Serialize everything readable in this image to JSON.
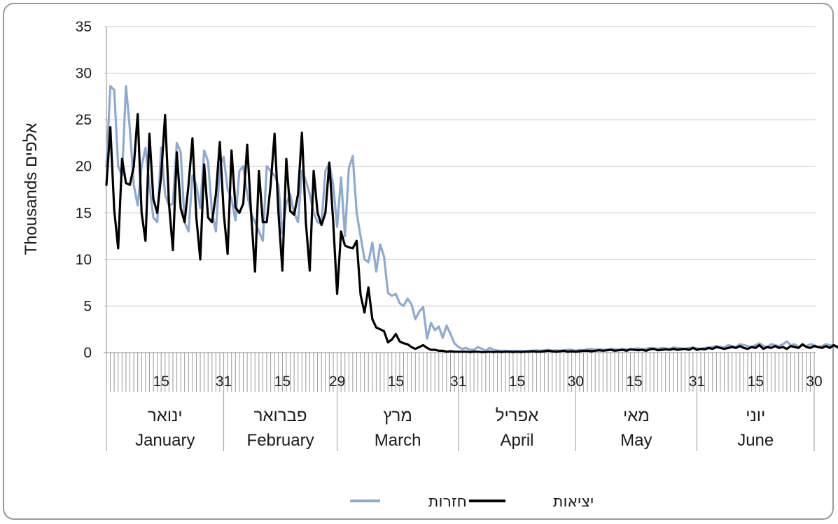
{
  "chart_data": {
    "type": "line",
    "ylabel": "Thousands אלפים",
    "ylim": [
      0,
      35
    ],
    "yticks": [
      "0",
      "5",
      "10",
      "15",
      "20",
      "25",
      "30",
      "35"
    ],
    "grid": true,
    "legend": "bottom",
    "day_tick_labels": [
      {
        "day": 15,
        "label": "15"
      },
      {
        "day": 31,
        "label": "31"
      },
      {
        "day": 46,
        "label": "15"
      },
      {
        "day": 60,
        "label": "29"
      },
      {
        "day": 75,
        "label": "15"
      },
      {
        "day": 91,
        "label": "31"
      },
      {
        "day": 106,
        "label": "15"
      },
      {
        "day": 121,
        "label": "30"
      },
      {
        "day": 136,
        "label": "15"
      },
      {
        "day": 152,
        "label": "31"
      },
      {
        "day": 167,
        "label": "15"
      },
      {
        "day": 182,
        "label": "30"
      }
    ],
    "months": [
      {
        "he": "ינואר",
        "en": "January",
        "start": 1,
        "end": 31
      },
      {
        "he": "פברואר",
        "en": "February",
        "start": 32,
        "end": 60
      },
      {
        "he": "מרץ",
        "en": "March",
        "start": 61,
        "end": 91
      },
      {
        "he": "אפריל",
        "en": "April",
        "start": 92,
        "end": 121
      },
      {
        "he": "מאי",
        "en": "May",
        "start": 122,
        "end": 152
      },
      {
        "he": "יוני",
        "en": "June",
        "start": 153,
        "end": 182
      }
    ],
    "series": [
      {
        "name": "חזרות",
        "color": "#8eaad2",
        "values": [
          20,
          28.6,
          28.2,
          20,
          19,
          28.6,
          24,
          18,
          15.8,
          20,
          22,
          18,
          14.5,
          14,
          22,
          17,
          15.8,
          16,
          22.5,
          21.5,
          14,
          13,
          19,
          18,
          15.5,
          21.7,
          20.5,
          15,
          13,
          20,
          21,
          17.5,
          16.5,
          14.2,
          19.5,
          20,
          17,
          15,
          14,
          13,
          12,
          20,
          19.5,
          19,
          18,
          12.8,
          16,
          17,
          15,
          14,
          19.5,
          18.5,
          17,
          15,
          14,
          13.8,
          19.5,
          20.3,
          18,
          13.5,
          18.8,
          12.5,
          19.8,
          21.1,
          15,
          12.5,
          10,
          9.7,
          11.8,
          8.7,
          11.6,
          10.3,
          6.4,
          6.1,
          6.3,
          5.3,
          5,
          5.8,
          5.2,
          3.6,
          4.4,
          4.9,
          1.5,
          3.2,
          2.4,
          2.8,
          1.6,
          2.9,
          2,
          1,
          0.6,
          0.4,
          0.5,
          0.3,
          0.3,
          0.6,
          0.4,
          0.2,
          0.5,
          0.3,
          0.2,
          0.2,
          0.2,
          0.15,
          0.2,
          0.15,
          0.2,
          0.15,
          0.2,
          0.2,
          0.25,
          0.2,
          0.25,
          0.3,
          0.2,
          0.25,
          0.2,
          0.25,
          0.3,
          0.3,
          0.2,
          0.3,
          0.25,
          0.35,
          0.4,
          0.3,
          0.35,
          0.3,
          0.3,
          0.4,
          0.35,
          0.3,
          0.4,
          0.35,
          0.3,
          0.4,
          0.45,
          0.35,
          0.4,
          0.5,
          0.45,
          0.4,
          0.5,
          0.45,
          0.4,
          0.55,
          0.5,
          0.45,
          0.4,
          0.5,
          0.55,
          0.45,
          0.4,
          0.5,
          0.55,
          0.6,
          0.7,
          0.6,
          0.55,
          0.8,
          0.7,
          0.6,
          0.9,
          0.8,
          0.7,
          0.6,
          0.8,
          1,
          0.7,
          0.6,
          0.9,
          0.8,
          0.7,
          0.9,
          1.2,
          0.8,
          0.9,
          0.6,
          0.8,
          0.7,
          0.9,
          0.8,
          0.6,
          0.7,
          0.9,
          0.8,
          0.7,
          0.5
        ]
      },
      {
        "name": "יציאות",
        "color": "#000000",
        "values": [
          18,
          24.2,
          15.3,
          11.2,
          20.8,
          18.2,
          18,
          20,
          25.6,
          15,
          12,
          23.5,
          16.5,
          15,
          19,
          25.5,
          16,
          11,
          21.5,
          15.5,
          14,
          18,
          23,
          14.5,
          10,
          20.2,
          14.5,
          14,
          17,
          22.6,
          15,
          10.6,
          21.7,
          15.6,
          15,
          16,
          22.3,
          15,
          8.7,
          19.5,
          14,
          14,
          18,
          23.5,
          15,
          8.8,
          20.8,
          15.2,
          14.8,
          17,
          23.6,
          14,
          8.8,
          19.5,
          15,
          13.7,
          15,
          20.4,
          14,
          6.3,
          13,
          11.5,
          11.3,
          11.2,
          12,
          6.2,
          4.3,
          7,
          3.6,
          2.7,
          2.5,
          2.3,
          1.1,
          1.4,
          2,
          1.2,
          1,
          0.9,
          0.6,
          0.4,
          0.6,
          0.8,
          0.5,
          0.3,
          0.3,
          0.2,
          0.2,
          0.1,
          0.15,
          0.1,
          0.1,
          0.1,
          0.1,
          0.05,
          0.1,
          0.1,
          0.05,
          0.05,
          0.1,
          0.05,
          0.1,
          0.05,
          0.1,
          0.1,
          0.05,
          0.1,
          0.05,
          0.1,
          0.1,
          0.15,
          0.1,
          0.1,
          0.15,
          0.2,
          0.15,
          0.1,
          0.15,
          0.2,
          0.1,
          0.15,
          0.1,
          0.15,
          0.2,
          0.2,
          0.15,
          0.2,
          0.25,
          0.2,
          0.25,
          0.3,
          0.2,
          0.25,
          0.3,
          0.2,
          0.35,
          0.3,
          0.25,
          0.3,
          0.2,
          0.35,
          0.4,
          0.25,
          0.3,
          0.35,
          0.3,
          0.4,
          0.3,
          0.35,
          0.4,
          0.3,
          0.5,
          0.3,
          0.4,
          0.35,
          0.5,
          0.4,
          0.6,
          0.5,
          0.4,
          0.5,
          0.6,
          0.5,
          0.7,
          0.5,
          0.4,
          0.6,
          0.5,
          0.8,
          0.4,
          0.6,
          0.5,
          0.7,
          0.5,
          0.6,
          0.4,
          0.7,
          0.6,
          0.5,
          0.9,
          0.6,
          0.5,
          0.7,
          0.6,
          0.5,
          0.7,
          0.5,
          0.8,
          0.6,
          1,
          0.8,
          0.5
        ]
      }
    ]
  }
}
